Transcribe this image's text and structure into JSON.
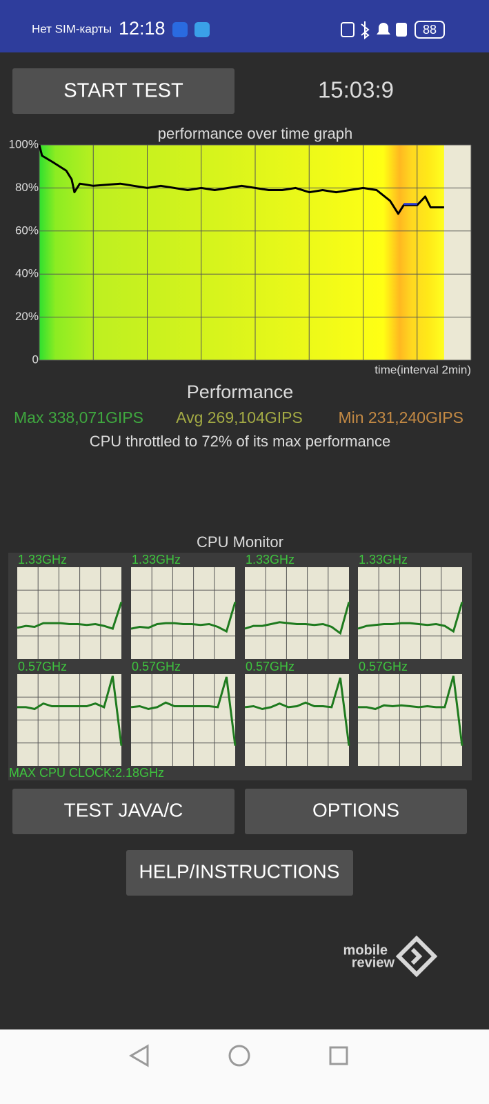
{
  "status_bar": {
    "carrier": "Нет SIM-карты",
    "time": "12:18",
    "battery": "88"
  },
  "start_button": "START TEST",
  "timer": "15:03:9",
  "chart_data": {
    "type": "line",
    "title": "performance over time graph",
    "x_label": "time(interval 2min)",
    "x": [
      0,
      0.1,
      0.5,
      1,
      1.2,
      1.3,
      1.5,
      2,
      2.5,
      3,
      3.5,
      4,
      4.5,
      5,
      5.5,
      6,
      6.5,
      7,
      7.5,
      8,
      8.5,
      9,
      9.5,
      10,
      10.5,
      11,
      11.5,
      12,
      12.5,
      13,
      13.3,
      13.5,
      14,
      14.3,
      14.5,
      15
    ],
    "series": [
      {
        "color": "#000000",
        "values": [
          100,
          95,
          92,
          88,
          84,
          78,
          82,
          81,
          81.5,
          82,
          81,
          80,
          81,
          80,
          79,
          80,
          79,
          80,
          81,
          80,
          79,
          79,
          80,
          78,
          79,
          78,
          79,
          80,
          79,
          74,
          68,
          72,
          72,
          76,
          71,
          71
        ]
      },
      {
        "color": "#2838d0",
        "values": [
          null,
          null,
          null,
          null,
          null,
          null,
          null,
          null,
          null,
          null,
          null,
          null,
          null,
          null,
          null,
          null,
          null,
          null,
          null,
          null,
          null,
          null,
          null,
          null,
          null,
          null,
          null,
          null,
          null,
          null,
          null,
          72.5,
          72.5,
          null,
          null,
          null
        ]
      }
    ],
    "xlim": [
      0,
      16
    ],
    "xticks": [
      0,
      2,
      4,
      6,
      8,
      10,
      12,
      14,
      16
    ],
    "ylim": [
      0,
      100
    ],
    "yticks": [
      0,
      {
        "value": 20,
        "label": "20%"
      },
      {
        "value": 40,
        "label": "40%"
      },
      {
        "value": 60,
        "label": "60%"
      },
      {
        "value": 80,
        "label": "80%"
      },
      {
        "value": 100,
        "label": "100%"
      }
    ],
    "grid": true
  },
  "performance": {
    "title": "Performance",
    "max": "Max 338,071GIPS",
    "avg": "Avg 269,104GIPS",
    "min": "Min 231,240GIPS",
    "summary": "CPU throttled to 72% of its max performance"
  },
  "cpu_monitor": {
    "title": "CPU Monitor",
    "ylim": [
      0,
      100
    ],
    "max_clock": "MAX CPU CLOCK:2.18GHz",
    "cores": [
      {
        "label": "1.33GHz",
        "values": [
          34,
          36,
          35,
          39,
          39,
          39,
          38,
          38,
          37,
          38,
          36,
          33,
          62
        ]
      },
      {
        "label": "1.33GHz",
        "values": [
          33,
          35,
          34,
          38,
          39,
          39,
          38,
          38,
          37,
          38,
          35,
          30,
          62
        ]
      },
      {
        "label": "1.33GHz",
        "values": [
          33,
          36,
          36,
          38,
          40,
          39,
          38,
          38,
          37,
          38,
          35,
          28,
          62
        ]
      },
      {
        "label": "1.33GHz",
        "values": [
          33,
          36,
          37,
          38,
          38,
          39,
          39,
          38,
          37,
          38,
          36,
          30,
          62
        ]
      },
      {
        "label": "0.57GHz",
        "values": [
          64,
          64,
          62,
          68,
          65,
          65,
          65,
          65,
          65,
          68,
          64,
          98,
          22
        ]
      },
      {
        "label": "0.57GHz",
        "values": [
          64,
          65,
          62,
          64,
          69,
          65,
          65,
          65,
          65,
          65,
          64,
          97,
          22
        ]
      },
      {
        "label": "0.57GHz",
        "values": [
          64,
          65,
          62,
          64,
          68,
          64,
          65,
          69,
          65,
          65,
          64,
          96,
          22
        ]
      },
      {
        "label": "0.57GHz",
        "values": [
          64,
          64,
          62,
          66,
          65,
          66,
          65,
          64,
          65,
          64,
          64,
          98,
          22
        ]
      }
    ]
  },
  "buttons": {
    "test_java": "TEST JAVA/C",
    "options": "OPTIONS",
    "help": "HELP/INSTRUCTIONS"
  },
  "watermark": {
    "line1": "mobile",
    "line2": "review"
  }
}
